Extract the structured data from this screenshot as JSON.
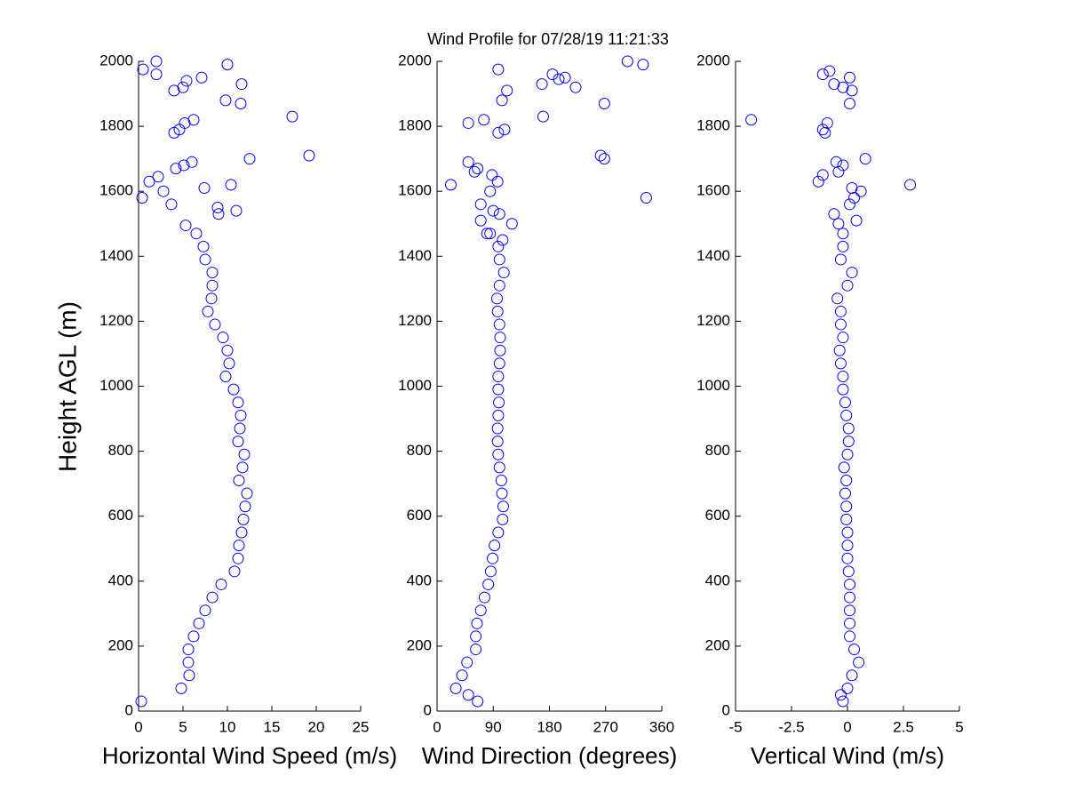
{
  "title": "Wind Profile for  07/28/19 11:21:33",
  "chart_data": [
    {
      "type": "scatter",
      "xlabel": "Horizontal Wind Speed (m/s)",
      "ylabel": "Height AGL (m)",
      "color": "#0000ff",
      "marker": "circle",
      "xlim": [
        0,
        25
      ],
      "xticks": [
        0,
        5,
        10,
        15,
        20,
        25
      ],
      "ylim": [
        0,
        2000
      ],
      "yticks": [
        0,
        200,
        400,
        600,
        800,
        1000,
        1200,
        1400,
        1600,
        1800,
        2000
      ],
      "x": [
        0.3,
        4.8,
        5.7,
        5.6,
        5.6,
        6.2,
        6.8,
        7.5,
        8.3,
        9.3,
        10.8,
        11.2,
        11.3,
        11.6,
        11.8,
        12,
        12.2,
        11.3,
        11.7,
        11.9,
        11.2,
        11.4,
        11.5,
        11.2,
        10.7,
        9.8,
        10.2,
        10,
        9.5,
        8.6,
        7.8,
        8.2,
        8.3,
        8.3,
        7.5,
        7.3,
        6.5,
        5.3,
        0.4,
        3.7,
        2.8,
        7.4,
        10.4,
        1.2,
        2.2,
        4.2,
        5.1,
        6,
        12.5,
        19.2,
        4,
        4.6,
        5.2,
        6.2,
        17.3,
        11.5,
        9.8,
        4,
        5,
        11.6,
        5.4,
        7.1,
        2,
        0.5,
        10,
        2,
        9,
        11,
        8.9
      ],
      "y": [
        30,
        70,
        110,
        150,
        190,
        230,
        270,
        310,
        350,
        390,
        430,
        470,
        510,
        550,
        590,
        630,
        670,
        710,
        750,
        790,
        830,
        870,
        910,
        950,
        990,
        1030,
        1070,
        1110,
        1150,
        1190,
        1230,
        1270,
        1310,
        1350,
        1390,
        1430,
        1470,
        1495,
        1580,
        1560,
        1600,
        1610,
        1620,
        1630,
        1645,
        1670,
        1680,
        1690,
        1700,
        1710,
        1780,
        1790,
        1810,
        1820,
        1830,
        1870,
        1880,
        1910,
        1920,
        1930,
        1940,
        1950,
        1960,
        1975,
        1990,
        2000,
        1530,
        1540,
        1550
      ]
    },
    {
      "type": "scatter",
      "xlabel": "Wind Direction (degrees)",
      "color": "#0000ff",
      "marker": "circle",
      "xlim": [
        0,
        360
      ],
      "xticks": [
        0,
        90,
        180,
        270,
        360
      ],
      "ylim": [
        0,
        2000
      ],
      "yticks": [
        0,
        200,
        400,
        600,
        800,
        1000,
        1200,
        1400,
        1600,
        1800,
        2000
      ],
      "x": [
        65,
        50,
        30,
        40,
        48,
        62,
        62,
        64,
        70,
        76,
        82,
        86,
        89,
        92,
        98,
        105,
        106,
        104,
        103,
        100,
        98,
        97,
        97,
        98,
        99,
        98,
        98,
        100,
        101,
        101,
        100,
        97,
        96,
        100,
        107,
        100,
        98,
        85,
        120,
        105,
        70,
        80,
        100,
        90,
        70,
        335,
        22,
        85,
        97,
        88,
        60,
        50,
        65,
        262,
        268,
        50,
        75,
        170,
        108,
        98,
        104,
        112,
        268,
        168,
        185,
        195,
        205,
        222,
        98,
        305,
        330
      ],
      "y": [
        30,
        50,
        70,
        110,
        150,
        190,
        230,
        270,
        310,
        350,
        390,
        430,
        470,
        510,
        550,
        590,
        630,
        670,
        710,
        750,
        790,
        830,
        870,
        910,
        950,
        990,
        1030,
        1070,
        1110,
        1150,
        1190,
        1230,
        1270,
        1310,
        1350,
        1390,
        1430,
        1470,
        1500,
        1450,
        1510,
        1470,
        1530,
        1540,
        1560,
        1580,
        1620,
        1600,
        1630,
        1650,
        1660,
        1690,
        1670,
        1710,
        1700,
        1810,
        1820,
        1830,
        1790,
        1780,
        1880,
        1910,
        1870,
        1930,
        1960,
        1945,
        1950,
        1920,
        1975,
        2000,
        1990
      ]
    },
    {
      "type": "scatter",
      "xlabel": "Vertical Wind (m/s)",
      "color": "#0000ff",
      "marker": "circle",
      "xlim": [
        -5,
        5
      ],
      "xticks": [
        -5,
        -2.5,
        0,
        2.5,
        5
      ],
      "ylim": [
        0,
        2000
      ],
      "yticks": [
        0,
        200,
        400,
        600,
        800,
        1000,
        1200,
        1400,
        1600,
        1800,
        2000
      ],
      "x": [
        -0.2,
        -0.3,
        0,
        0.2,
        0.5,
        0.3,
        0.1,
        0.1,
        0.1,
        0.1,
        0.1,
        0.05,
        0,
        0,
        0,
        -0.05,
        -0.05,
        -0.1,
        -0.05,
        -0.15,
        0,
        0.05,
        0.05,
        -0.05,
        -0.1,
        -0.2,
        -0.2,
        -0.3,
        -0.35,
        -0.2,
        -0.3,
        -0.3,
        -0.45,
        0,
        0.2,
        -0.3,
        -0.2,
        -0.2,
        -0.4,
        0.4,
        -0.6,
        0.1,
        0.3,
        0.6,
        0.2,
        2.8,
        -1.3,
        -1.1,
        -0.4,
        -0.2,
        -0.5,
        0.8,
        -1,
        -1.1,
        -0.9,
        -4.3,
        0.1,
        0.2,
        -0.2,
        -0.6,
        -1.1,
        -0.8,
        0.1
      ],
      "y": [
        30,
        50,
        70,
        110,
        150,
        190,
        230,
        270,
        310,
        350,
        390,
        430,
        470,
        510,
        550,
        590,
        630,
        670,
        710,
        750,
        790,
        830,
        870,
        910,
        950,
        990,
        1030,
        1070,
        1110,
        1150,
        1190,
        1230,
        1270,
        1310,
        1350,
        1390,
        1430,
        1470,
        1500,
        1510,
        1530,
        1560,
        1580,
        1600,
        1610,
        1620,
        1630,
        1650,
        1660,
        1680,
        1690,
        1700,
        1780,
        1790,
        1810,
        1820,
        1870,
        1910,
        1920,
        1930,
        1960,
        1970,
        1950
      ]
    }
  ]
}
